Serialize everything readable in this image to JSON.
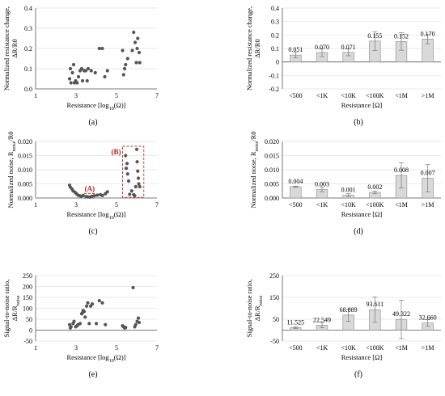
{
  "chart_data": [
    {
      "id": "a",
      "type": "scatter",
      "panel_label": "(a)",
      "xlabel": "Resistance [log10(Ω)]",
      "ylabel": "Normalized resistance change,\nΔR/R0",
      "xlim": [
        1,
        7
      ],
      "ylim": [
        0,
        0.4
      ],
      "xticks": [
        1,
        3,
        5,
        7
      ],
      "yticks": [
        0,
        0.1,
        0.2,
        0.3,
        0.4
      ],
      "ytick_labels": [
        "0.0",
        "0.1",
        "0.2",
        "0.3",
        "0.4"
      ],
      "points": [
        [
          2.68,
          0.05
        ],
        [
          2.72,
          0.1
        ],
        [
          2.75,
          0.03
        ],
        [
          2.82,
          0.08
        ],
        [
          2.88,
          0.12
        ],
        [
          2.92,
          0.03
        ],
        [
          2.98,
          0.04
        ],
        [
          3.05,
          0.03
        ],
        [
          3.12,
          0.06
        ],
        [
          3.2,
          0.09
        ],
        [
          3.28,
          0.1
        ],
        [
          3.32,
          0.04
        ],
        [
          3.4,
          0.09
        ],
        [
          3.48,
          0.09
        ],
        [
          3.55,
          0.04
        ],
        [
          3.6,
          0.1
        ],
        [
          3.75,
          0.09
        ],
        [
          3.95,
          0.08
        ],
        [
          4.15,
          0.2
        ],
        [
          4.3,
          0.2
        ],
        [
          4.42,
          0.06
        ],
        [
          4.55,
          0.09
        ],
        [
          5.3,
          0.19
        ],
        [
          5.35,
          0.07
        ],
        [
          5.4,
          0.1
        ],
        [
          5.45,
          0.12
        ],
        [
          5.55,
          0.15
        ],
        [
          5.78,
          0.19
        ],
        [
          5.85,
          0.28
        ],
        [
          5.92,
          0.23
        ],
        [
          5.98,
          0.13
        ],
        [
          6.02,
          0.2
        ],
        [
          6.05,
          0.25
        ],
        [
          6.12,
          0.18
        ],
        [
          6.15,
          0.13
        ]
      ]
    },
    {
      "id": "b",
      "type": "bar",
      "panel_label": "(b)",
      "xlabel": "Resistance [Ω]",
      "ylabel": "Normalized resistance change,\nΔR/R0",
      "categories": [
        "<500",
        "<1K",
        "<10K",
        "<100K",
        "<1M",
        ">1M"
      ],
      "values": [
        0.051,
        0.07,
        0.071,
        0.155,
        0.152,
        0.17
      ],
      "value_labels": [
        "0.051",
        "0.070",
        "0.071",
        "0.155",
        "0.152",
        "0.170"
      ],
      "errors": [
        0.02,
        0.03,
        0.025,
        0.07,
        0.065,
        0.035
      ],
      "ylim": [
        -0.2,
        0.4
      ],
      "yticks": [
        -0.2,
        -0.1,
        0,
        0.1,
        0.2,
        0.3,
        0.4
      ],
      "ytick_labels": [
        "-0.2",
        "-0.1",
        "0",
        "0.1",
        "0.2",
        "0.3",
        "0.4"
      ]
    },
    {
      "id": "c",
      "type": "scatter",
      "panel_label": "(c)",
      "xlabel": "Resistance [log10(Ω)]",
      "ylabel": "Normalized noise, Rnoise/R0",
      "xlim": [
        1,
        7
      ],
      "ylim": [
        0,
        0.02
      ],
      "xticks": [
        1,
        3,
        5,
        7
      ],
      "yticks": [
        0,
        0.005,
        0.01,
        0.015,
        0.02
      ],
      "ytick_labels": [
        "0.000",
        "0.005",
        "0.010",
        "0.015",
        "0.020"
      ],
      "annotations": [
        {
          "label": "(A)",
          "box_x": [
            3.4,
            3.95
          ],
          "box_y": [
            0,
            0.0016
          ]
        },
        {
          "label": "(B)",
          "box_x": [
            5.3,
            6.35
          ],
          "box_y": [
            0.0002,
            0.0183
          ]
        }
      ],
      "points": [
        [
          2.68,
          0.0045
        ],
        [
          2.72,
          0.0038
        ],
        [
          2.8,
          0.0032
        ],
        [
          2.85,
          0.0025
        ],
        [
          2.95,
          0.002
        ],
        [
          3.02,
          0.0015
        ],
        [
          3.1,
          0.001
        ],
        [
          3.18,
          0.0008
        ],
        [
          3.25,
          0.0006
        ],
        [
          3.35,
          0.0009
        ],
        [
          3.5,
          0.0005
        ],
        [
          3.58,
          0.0004
        ],
        [
          3.68,
          0.0003
        ],
        [
          3.78,
          0.0006
        ],
        [
          3.9,
          0.0008
        ],
        [
          4.05,
          0.001
        ],
        [
          4.2,
          0.0012
        ],
        [
          4.3,
          0.0009
        ],
        [
          4.45,
          0.0015
        ],
        [
          4.55,
          0.0022
        ],
        [
          5.45,
          0.015
        ],
        [
          5.48,
          0.0105
        ],
        [
          5.52,
          0.0122
        ],
        [
          5.55,
          0.0085
        ],
        [
          5.6,
          0.006
        ],
        [
          5.65,
          0.0013
        ],
        [
          5.75,
          0.0025
        ],
        [
          5.85,
          0.0012
        ],
        [
          5.9,
          0.0008
        ],
        [
          5.95,
          0.004
        ],
        [
          6.0,
          0.0172
        ],
        [
          6.02,
          0.0128
        ],
        [
          6.05,
          0.0095
        ],
        [
          6.08,
          0.007
        ],
        [
          6.1,
          0.005
        ],
        [
          6.15,
          0.004
        ]
      ]
    },
    {
      "id": "d",
      "type": "bar",
      "panel_label": "(d)",
      "xlabel": "Resistance [Ω]",
      "ylabel": "Normalized noise, Rnoise/R0",
      "categories": [
        "<500",
        "<1K",
        "<10K",
        "<100K",
        "<1M",
        ">1M"
      ],
      "values": [
        0.004,
        0.003,
        0.001,
        0.002,
        0.008,
        0.007
      ],
      "value_labels": [
        "0.004",
        "0.003",
        "0.001",
        "0.002",
        "0.008",
        "0.007"
      ],
      "errors": [
        0.0002,
        0.0008,
        0.0005,
        0.0005,
        0.0045,
        0.0048
      ],
      "ylim": [
        0,
        0.02
      ],
      "yticks": [
        0,
        0.005,
        0.01,
        0.015,
        0.02
      ],
      "ytick_labels": [
        "0.000",
        "0.005",
        "0.010",
        "0.015",
        "0.020"
      ]
    },
    {
      "id": "e",
      "type": "scatter",
      "panel_label": "(e)",
      "xlabel": "Resistance [log10(Ω)]",
      "ylabel": "Signal-to-noise ratio,\nΔR/Rnoise",
      "xlim": [
        1,
        7
      ],
      "ylim": [
        -50,
        250
      ],
      "xticks": [
        1,
        3,
        5,
        7
      ],
      "yticks": [
        -50,
        0,
        50,
        100,
        150,
        200,
        250
      ],
      "ytick_labels": [
        "-50",
        "0",
        "50",
        "100",
        "150",
        "200",
        "250"
      ],
      "points": [
        [
          2.68,
          25
        ],
        [
          2.72,
          10
        ],
        [
          2.75,
          15
        ],
        [
          2.85,
          30
        ],
        [
          2.9,
          40
        ],
        [
          2.98,
          15
        ],
        [
          3.05,
          20
        ],
        [
          3.1,
          25
        ],
        [
          3.2,
          30
        ],
        [
          3.28,
          75
        ],
        [
          3.32,
          80
        ],
        [
          3.35,
          90
        ],
        [
          3.4,
          85
        ],
        [
          3.45,
          60
        ],
        [
          3.52,
          110
        ],
        [
          3.58,
          125
        ],
        [
          3.65,
          30
        ],
        [
          3.72,
          110
        ],
        [
          3.8,
          120
        ],
        [
          4.0,
          30
        ],
        [
          4.15,
          135
        ],
        [
          4.3,
          125
        ],
        [
          4.45,
          25
        ],
        [
          5.3,
          20
        ],
        [
          5.35,
          15
        ],
        [
          5.4,
          10
        ],
        [
          5.45,
          12
        ],
        [
          5.82,
          195
        ],
        [
          5.9,
          15
        ],
        [
          5.95,
          25
        ],
        [
          6.02,
          40
        ],
        [
          6.08,
          55
        ],
        [
          6.12,
          35
        ]
      ]
    },
    {
      "id": "f",
      "type": "bar",
      "panel_label": "(f)",
      "xlabel": "Resistance [Ω]",
      "ylabel": "Signal-to-noise ratio,\nΔR/Rnoise",
      "categories": [
        "<500",
        "<1K",
        "<10K",
        "<100K",
        "<1M",
        ">1M"
      ],
      "values": [
        11.525,
        22.549,
        68.889,
        93.611,
        49.322,
        32.66
      ],
      "value_labels": [
        "11.525",
        "22.549",
        "68.889",
        "93.611",
        "49.322",
        "32.660"
      ],
      "errors": [
        4,
        12,
        28,
        58,
        88,
        15
      ],
      "ylim": [
        -50,
        250
      ],
      "yticks": [
        -50,
        50,
        150,
        250
      ],
      "ytick_labels": [
        "-50",
        "50",
        "150",
        "250"
      ]
    }
  ]
}
